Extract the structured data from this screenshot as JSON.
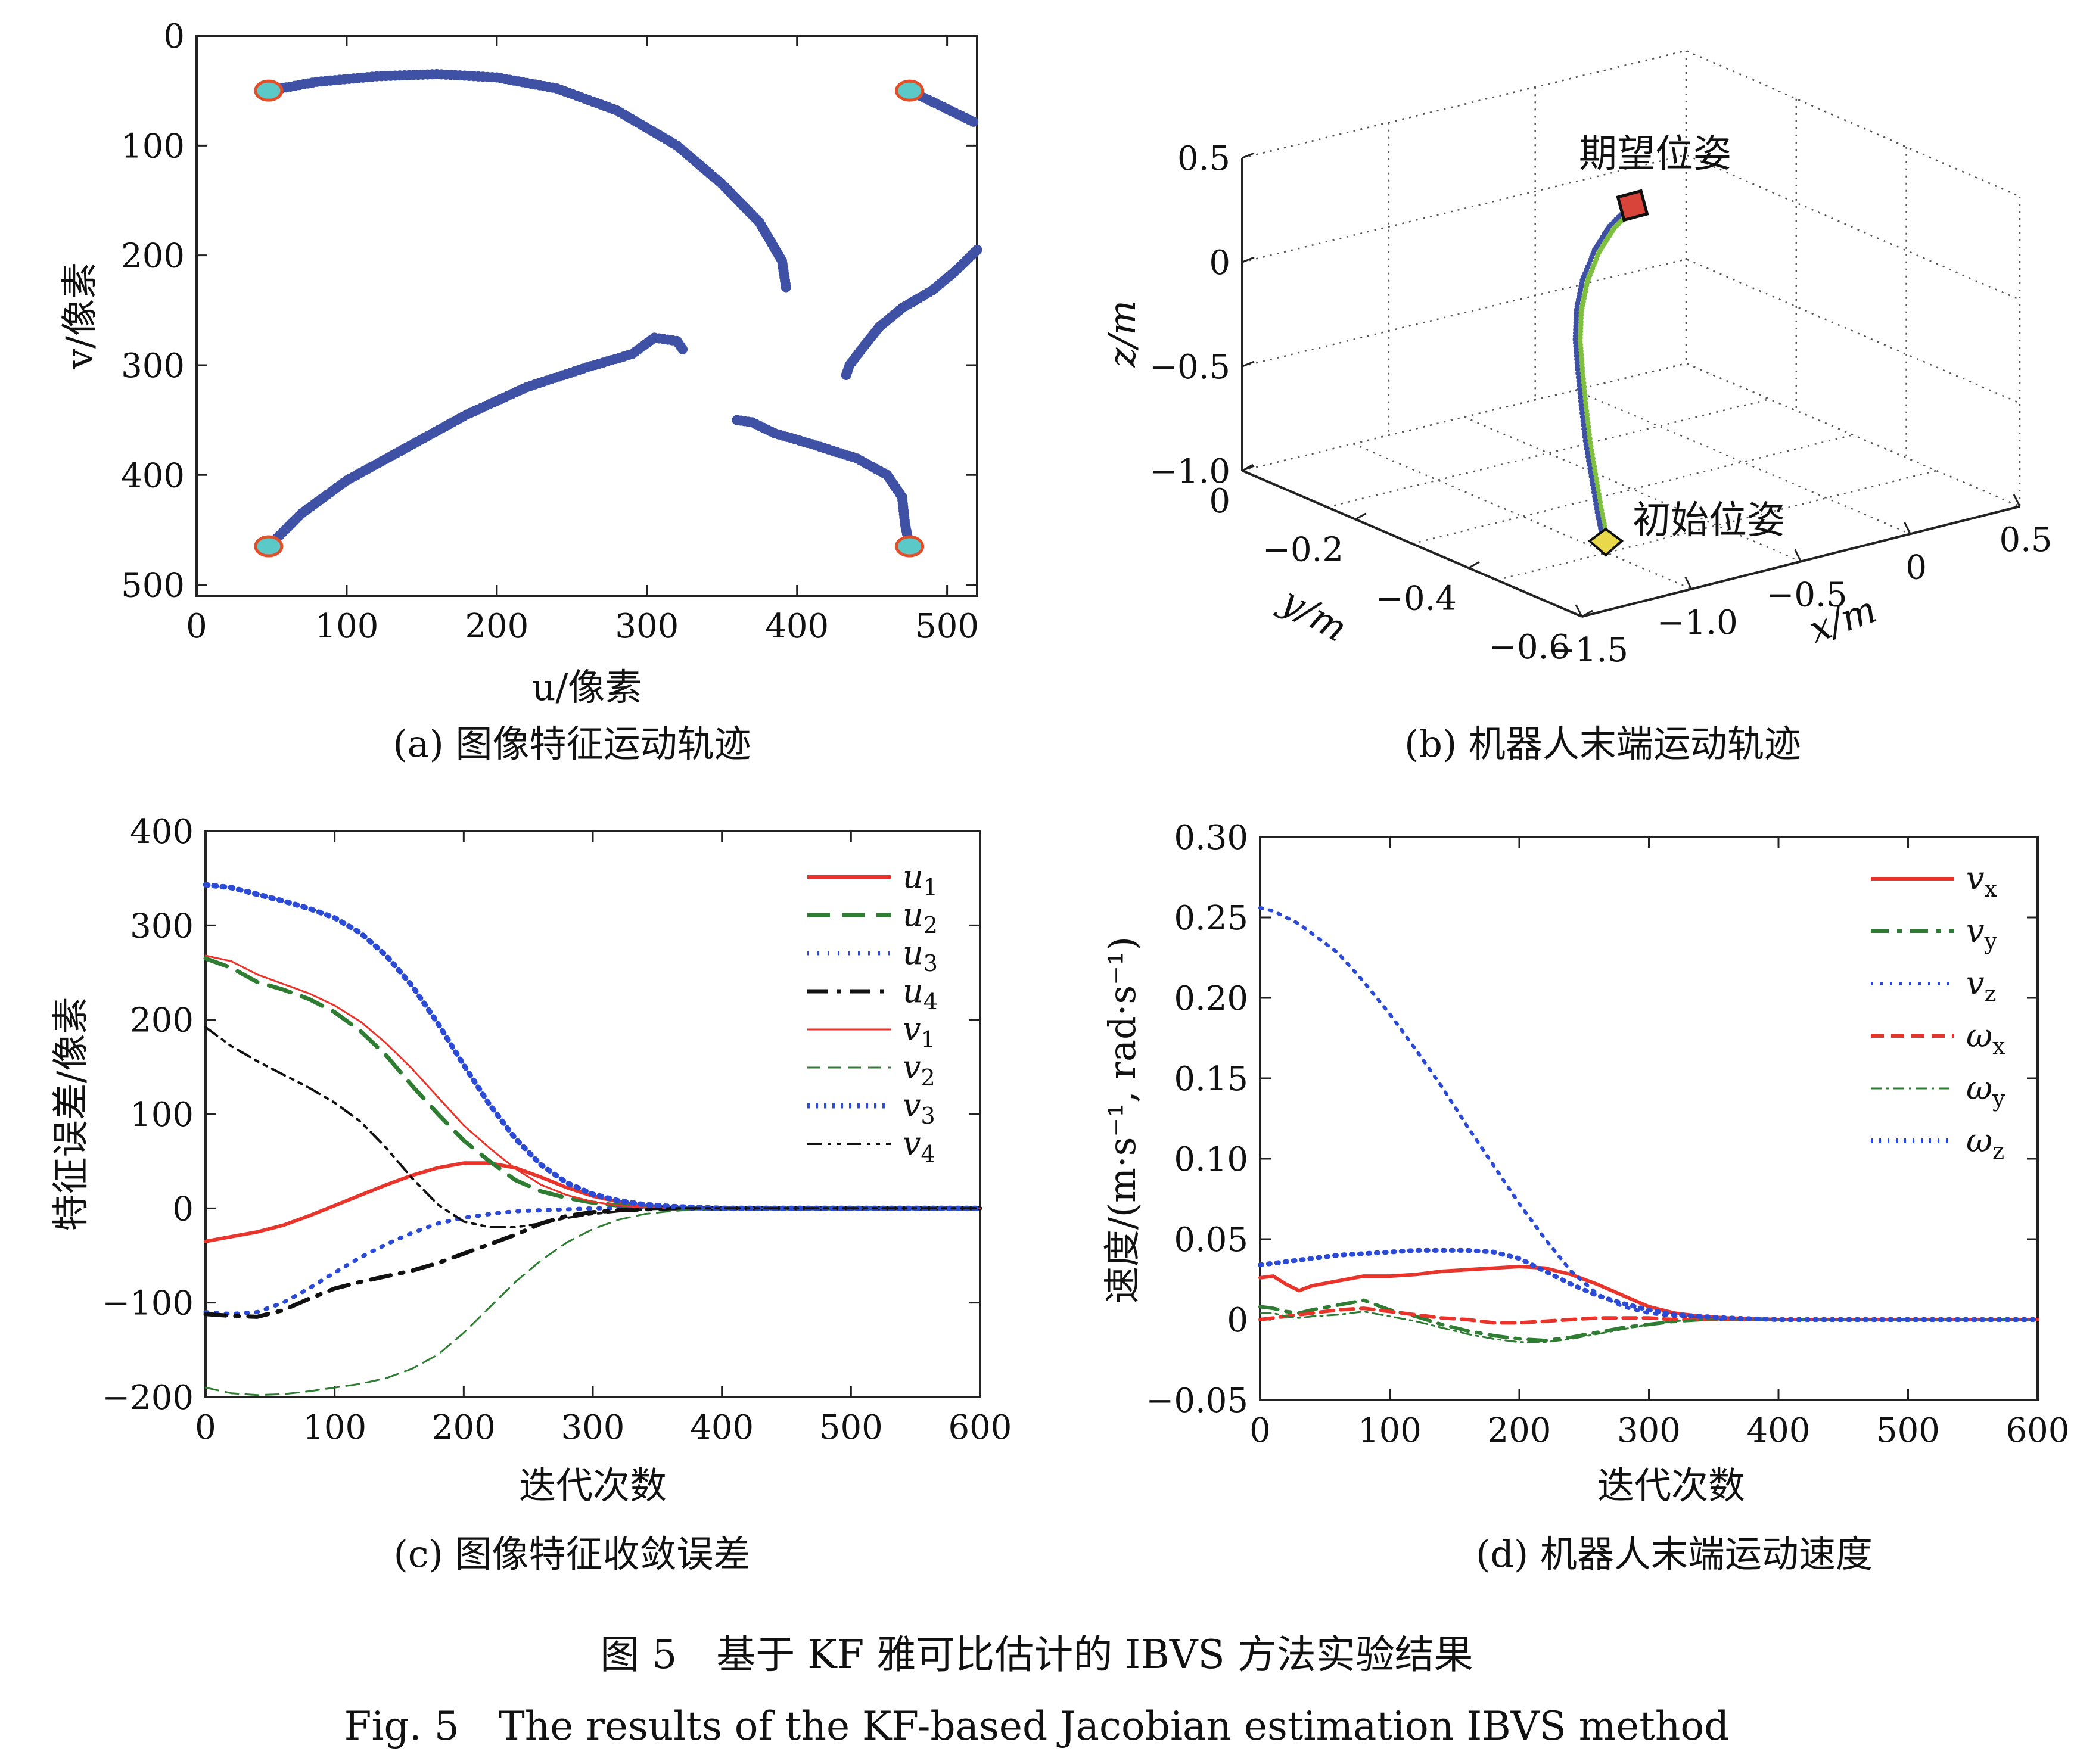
{
  "chart_data": [
    {
      "id": "a",
      "type": "scatter",
      "caption": "(a) 图像特征运动轨迹",
      "xlabel": "u/像素",
      "ylabel": "v/像素",
      "xlim": [
        0,
        520
      ],
      "ylim": [
        510,
        0
      ],
      "xticks": [
        0,
        100,
        200,
        300,
        400,
        500
      ],
      "yticks": [
        0,
        100,
        200,
        300,
        400,
        500
      ],
      "point_color": "#3f51a5",
      "marker_fill": "#5cc9c9",
      "marker_edge": "#e2502b",
      "markers": [
        [
          48,
          50
        ],
        [
          475,
          50
        ],
        [
          48,
          465
        ],
        [
          475,
          465
        ]
      ],
      "tracks": [
        [
          [
            48,
            50
          ],
          [
            80,
            42
          ],
          [
            120,
            37
          ],
          [
            160,
            35
          ],
          [
            200,
            38
          ],
          [
            240,
            48
          ],
          [
            280,
            68
          ],
          [
            320,
            100
          ],
          [
            350,
            135
          ],
          [
            375,
            170
          ],
          [
            390,
            205
          ],
          [
            393,
            232
          ]
        ],
        [
          [
            475,
            50
          ],
          [
            490,
            60
          ],
          [
            505,
            70
          ],
          [
            520,
            80
          ]
        ],
        [
          [
            520,
            195
          ],
          [
            505,
            215
          ],
          [
            490,
            232
          ],
          [
            470,
            248
          ],
          [
            455,
            265
          ],
          [
            445,
            282
          ],
          [
            435,
            300
          ],
          [
            432,
            312
          ]
        ],
        [
          [
            48,
            465
          ],
          [
            70,
            435
          ],
          [
            100,
            405
          ],
          [
            140,
            375
          ],
          [
            180,
            345
          ],
          [
            220,
            320
          ],
          [
            260,
            302
          ],
          [
            290,
            290
          ],
          [
            305,
            275
          ],
          [
            320,
            278
          ],
          [
            325,
            288
          ]
        ],
        [
          [
            360,
            350
          ],
          [
            370,
            352
          ],
          [
            385,
            362
          ],
          [
            410,
            372
          ],
          [
            440,
            385
          ],
          [
            460,
            400
          ],
          [
            470,
            420
          ],
          [
            472,
            445
          ],
          [
            475,
            465
          ]
        ]
      ]
    },
    {
      "id": "b",
      "type": "line",
      "caption": "(b) 机器人末端运动轨迹",
      "xlabel": "x/m",
      "ylabel": "y/m",
      "zlabel": "z/m",
      "xlim": [
        -1.5,
        0.5
      ],
      "ylim": [
        -0.6,
        0
      ],
      "zlim": [
        -1.0,
        0.5
      ],
      "xticks": [
        "−1.5",
        "−1.0",
        "−0.5",
        "0",
        "0.5"
      ],
      "yticks": [
        "0",
        "−0.2",
        "−0.4",
        "−0.6"
      ],
      "zticks": [
        "0.5",
        "0",
        "−0.5",
        "−1.0"
      ],
      "annotations": [
        "期望位姿",
        "初始位姿"
      ],
      "path_colors": [
        "#3f51a5",
        "#7fbf3f"
      ],
      "start_color": "#e8d84a",
      "end_color": "#d9443a"
    },
    {
      "id": "c",
      "type": "line",
      "caption": "(c) 图像特征收敛误差",
      "xlabel": "迭代次数",
      "ylabel": "特征误差/像素",
      "xlim": [
        0,
        600
      ],
      "ylim": [
        -200,
        400
      ],
      "xticks": [
        0,
        100,
        200,
        300,
        400,
        500,
        600
      ],
      "yticks": [
        400,
        300,
        200,
        100,
        0,
        -100,
        -200
      ],
      "x": [
        0,
        20,
        40,
        60,
        80,
        100,
        120,
        140,
        160,
        180,
        200,
        220,
        240,
        260,
        280,
        300,
        320,
        340,
        360,
        380,
        400,
        450,
        500,
        550,
        600
      ],
      "series": [
        {
          "name": "u",
          "sub": "1",
          "color": "#e8342a",
          "dash": "",
          "width": 6,
          "values": [
            -35,
            -30,
            -25,
            -18,
            -8,
            3,
            14,
            25,
            35,
            43,
            48,
            48,
            43,
            33,
            22,
            13,
            7,
            3,
            1,
            0,
            0,
            0,
            0,
            0,
            0
          ]
        },
        {
          "name": "u",
          "sub": "2",
          "color": "#2e7d32",
          "dash": "38,20",
          "width": 7,
          "values": [
            265,
            255,
            240,
            232,
            222,
            208,
            188,
            162,
            130,
            100,
            72,
            50,
            30,
            18,
            11,
            6,
            3,
            2,
            1,
            0,
            0,
            0,
            0,
            0,
            0
          ]
        },
        {
          "name": "u",
          "sub": "3",
          "color": "#2b4bd6",
          "dash": "3,14",
          "width": 7,
          "values": [
            -110,
            -112,
            -110,
            -100,
            -85,
            -68,
            -52,
            -38,
            -26,
            -16,
            -10,
            -6,
            -3,
            -2,
            -1,
            0,
            0,
            0,
            0,
            0,
            0,
            0,
            0,
            0,
            0
          ]
        },
        {
          "name": "u",
          "sub": "4",
          "color": "#111111",
          "dash": "34,16,6,16",
          "width": 7,
          "values": [
            -112,
            -114,
            -115,
            -108,
            -96,
            -85,
            -78,
            -72,
            -66,
            -58,
            -48,
            -38,
            -28,
            -16,
            -8,
            -4,
            -2,
            -1,
            0,
            0,
            0,
            0,
            0,
            0,
            0
          ]
        },
        {
          "name": "v",
          "sub": "1",
          "color": "#e8342a",
          "dash": "",
          "width": 3,
          "values": [
            268,
            262,
            248,
            238,
            228,
            215,
            198,
            175,
            148,
            118,
            88,
            64,
            42,
            25,
            14,
            7,
            3,
            1,
            0,
            0,
            0,
            0,
            0,
            0,
            0
          ]
        },
        {
          "name": "v",
          "sub": "2",
          "color": "#2e7d32",
          "dash": "22,12",
          "width": 3,
          "values": [
            -190,
            -196,
            -198,
            -197,
            -194,
            -190,
            -186,
            -180,
            -170,
            -155,
            -132,
            -105,
            -78,
            -55,
            -36,
            -22,
            -12,
            -6,
            -3,
            -1,
            0,
            0,
            0,
            0,
            0
          ]
        },
        {
          "name": "v",
          "sub": "3",
          "color": "#2b4bd6",
          "dash": "4,10",
          "width": 9,
          "values": [
            343,
            340,
            333,
            326,
            318,
            308,
            292,
            268,
            236,
            196,
            152,
            110,
            74,
            46,
            27,
            15,
            8,
            4,
            2,
            1,
            0,
            0,
            0,
            0,
            0
          ]
        },
        {
          "name": "v",
          "sub": "4",
          "color": "#111111",
          "dash": "24,10,6,10,6,10",
          "width": 4,
          "values": [
            192,
            172,
            156,
            142,
            128,
            112,
            92,
            64,
            32,
            4,
            -14,
            -20,
            -20,
            -16,
            -10,
            -6,
            -3,
            -1,
            0,
            0,
            0,
            0,
            0,
            0,
            0
          ]
        }
      ]
    },
    {
      "id": "d",
      "type": "line",
      "caption": "(d) 机器人末端运动速度",
      "xlabel": "迭代次数",
      "ylabel": "速度/(m·s⁻¹, rad·s⁻¹)",
      "xlim": [
        0,
        600
      ],
      "ylim": [
        -0.05,
        0.3
      ],
      "xticks": [
        0,
        100,
        200,
        300,
        400,
        500,
        600
      ],
      "yticks": [
        "0.30",
        "0.25",
        "0.20",
        "0.15",
        "0.10",
        "0.05",
        "0",
        "−0.05"
      ],
      "ytick_values": [
        0.3,
        0.25,
        0.2,
        0.15,
        0.1,
        0.05,
        0,
        -0.05
      ],
      "x": [
        0,
        10,
        20,
        30,
        40,
        60,
        80,
        100,
        120,
        140,
        160,
        180,
        200,
        220,
        240,
        260,
        280,
        300,
        320,
        340,
        360,
        400,
        450,
        500,
        550,
        600
      ],
      "series": [
        {
          "name": "v",
          "sub": "x",
          "color": "#e8342a",
          "dash": "",
          "width": 6,
          "values": [
            0.026,
            0.027,
            0.022,
            0.018,
            0.021,
            0.024,
            0.027,
            0.027,
            0.028,
            0.03,
            0.031,
            0.032,
            0.033,
            0.032,
            0.028,
            0.022,
            0.015,
            0.008,
            0.004,
            0.002,
            0.001,
            0,
            0,
            0,
            0,
            0
          ]
        },
        {
          "name": "v",
          "sub": "y",
          "color": "#2e7d32",
          "dash": "30,14,8,14",
          "width": 6,
          "values": [
            0.008,
            0.007,
            0.005,
            0.004,
            0.006,
            0.009,
            0.012,
            0.006,
            0.002,
            -0.003,
            -0.007,
            -0.01,
            -0.012,
            -0.013,
            -0.011,
            -0.008,
            -0.005,
            -0.003,
            -0.001,
            0,
            0,
            0,
            0,
            0,
            0,
            0
          ]
        },
        {
          "name": "v",
          "sub": "z",
          "color": "#2b4bd6",
          "dash": "4,12",
          "width": 6,
          "values": [
            0.256,
            0.254,
            0.25,
            0.246,
            0.24,
            0.228,
            0.21,
            0.19,
            0.168,
            0.145,
            0.12,
            0.096,
            0.072,
            0.05,
            0.03,
            0.016,
            0.008,
            0.004,
            0.002,
            0.001,
            0,
            0,
            0,
            0,
            0,
            0
          ]
        },
        {
          "name": "ω",
          "sub": "x",
          "color": "#e8342a",
          "dash": "22,12",
          "width": 6,
          "values": [
            0,
            0.001,
            0.002,
            0.003,
            0.004,
            0.006,
            0.007,
            0.005,
            0.003,
            0.001,
            0,
            -0.002,
            -0.002,
            -0.001,
            0,
            0.001,
            0.001,
            0.001,
            0,
            0,
            0,
            0,
            0,
            0,
            0,
            0
          ]
        },
        {
          "name": "ω",
          "sub": "y",
          "color": "#2e7d32",
          "dash": "18,8,4,8",
          "width": 3,
          "values": [
            0.004,
            0.004,
            0.002,
            0.001,
            0.002,
            0.003,
            0.005,
            0.002,
            -0.001,
            -0.005,
            -0.009,
            -0.012,
            -0.014,
            -0.014,
            -0.012,
            -0.009,
            -0.006,
            -0.003,
            -0.001,
            0,
            0,
            0,
            0,
            0,
            0,
            0
          ]
        },
        {
          "name": "ω",
          "sub": "z",
          "color": "#2b4bd6",
          "dash": "3,11",
          "width": 8,
          "values": [
            0.034,
            0.035,
            0.036,
            0.037,
            0.038,
            0.04,
            0.041,
            0.042,
            0.043,
            0.043,
            0.043,
            0.042,
            0.038,
            0.03,
            0.022,
            0.015,
            0.01,
            0.006,
            0.003,
            0.002,
            0.001,
            0,
            0,
            0,
            0,
            0
          ]
        }
      ]
    }
  ],
  "figure": {
    "caption_cn": "图 5　基于 KF 雅可比估计的 IBVS 方法实验结果",
    "caption_en": "Fig. 5　The results of the KF-based Jacobian estimation IBVS method"
  }
}
